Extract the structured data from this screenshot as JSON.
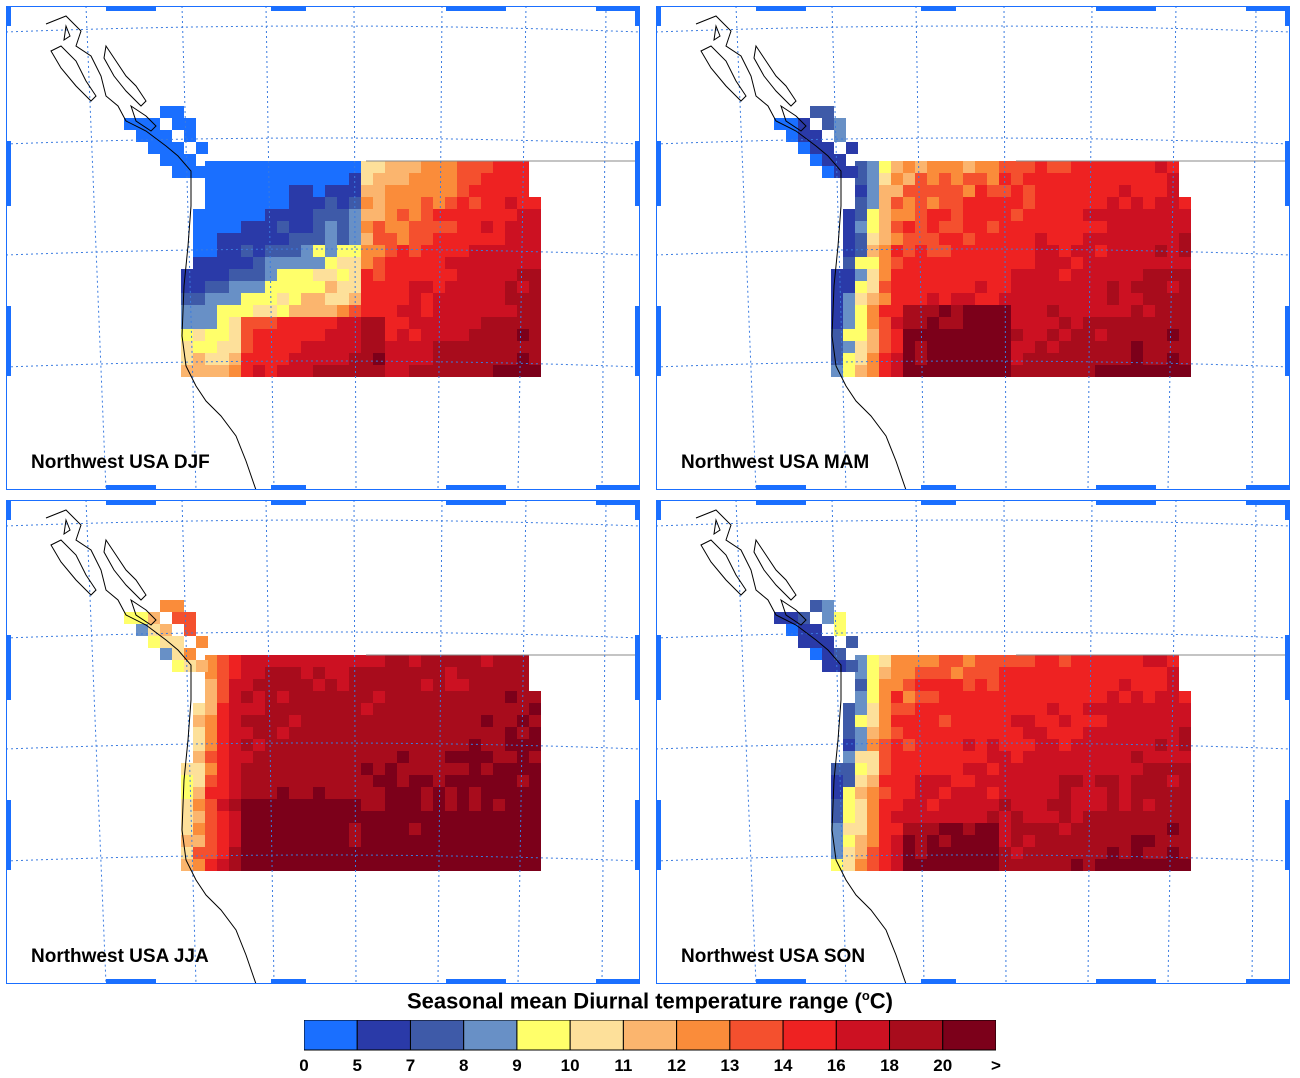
{
  "panels": [
    {
      "label": "Northwest USA DJF",
      "season": "DJF"
    },
    {
      "label": "Northwest USA MAM",
      "season": "MAM"
    },
    {
      "label": "Northwest USA JJA",
      "season": "JJA"
    },
    {
      "label": "Northwest USA SON",
      "season": "SON"
    }
  ],
  "colorbar": {
    "title_prefix": "Seasonal mean Diurnal temperature range (",
    "title_sup": "o",
    "title_suffix": "C)",
    "tick_labels": [
      "0",
      "5",
      "7",
      "8",
      "9",
      "10",
      "11",
      "12",
      "13",
      "14",
      "16",
      "18",
      "20",
      ">"
    ],
    "colors": [
      "#1a6fff",
      "#2a3aa8",
      "#3e5aa8",
      "#6890c6",
      "#ffff6a",
      "#fde09a",
      "#fbb56e",
      "#fa8c3a",
      "#f4502e",
      "#ee2222",
      "#cc1122",
      "#a80c1c",
      "#7c001a"
    ]
  },
  "map_style": {
    "frame_color": "#1a6fff",
    "grid_color": "#3a7be0",
    "coast_color": "#000000"
  }
}
